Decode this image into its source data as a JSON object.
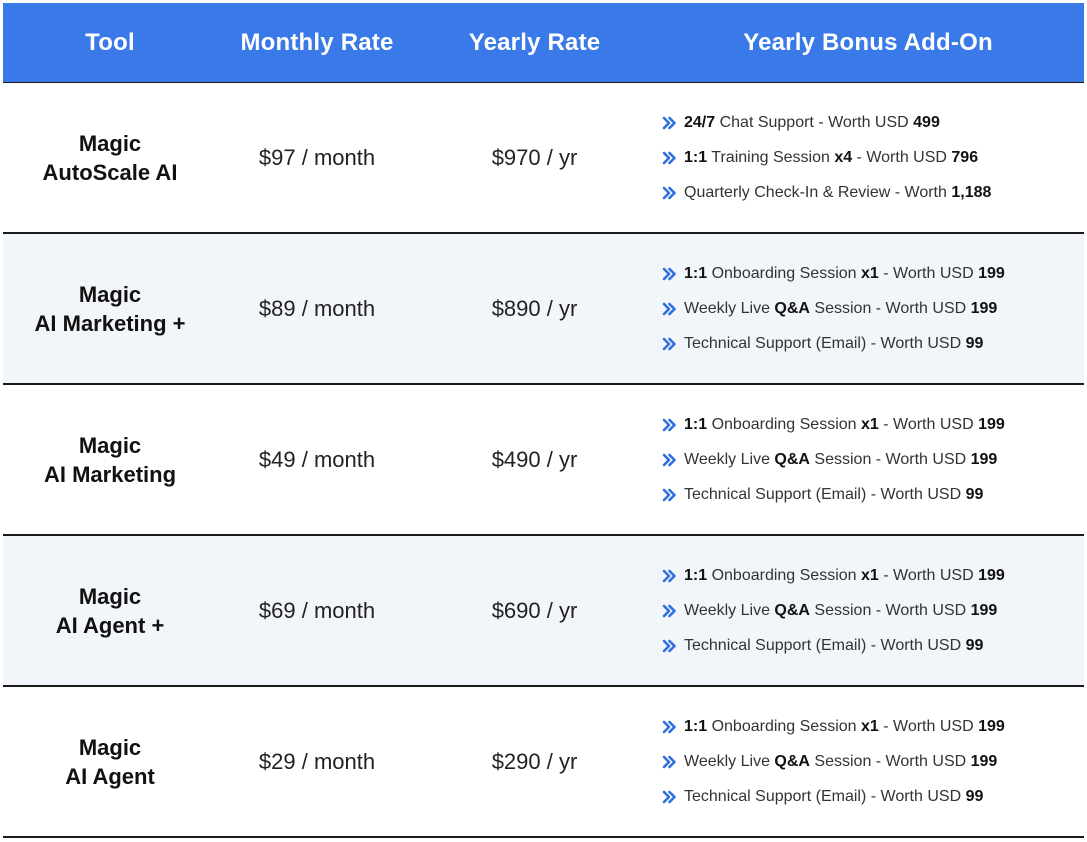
{
  "header": {
    "tool": "Tool",
    "monthly": "Monthly Rate",
    "yearly": "Yearly Rate",
    "bonus": "Yearly Bonus Add-On"
  },
  "colors": {
    "header_bg": "#3a7ae8",
    "header_text": "#ffffff",
    "alt_row_bg": "#f2f5fa",
    "chevron": "#2f6fe0"
  },
  "bullet_icon": "double-chevron-right-icon",
  "rows": [
    {
      "name_line1": "Magic",
      "name_line2": "AutoScale AI",
      "monthly": "$97 / month",
      "yearly": "$970 / yr",
      "bonuses": [
        {
          "b1": "24/7",
          "t1": " Chat Support - Worth USD ",
          "b2": "499",
          "t2": ""
        },
        {
          "b1": "1:1",
          "t1": " Training Session ",
          "b2": "x4",
          "t2": " - Worth USD ",
          "b3": "796"
        },
        {
          "b1": "",
          "t1": "Quarterly Check-In & Review - Worth ",
          "b2": "1,188",
          "t2": ""
        }
      ]
    },
    {
      "name_line1": "Magic",
      "name_line2": "AI Marketing +",
      "monthly": "$89 / month",
      "yearly": "$890 / yr",
      "bonuses": [
        {
          "b1": "1:1",
          "t1": " Onboarding Session ",
          "b2": "x1",
          "t2": " - Worth USD ",
          "b3": "199"
        },
        {
          "b1": "",
          "t1": "Weekly Live ",
          "b2": "Q&A",
          "t2": " Session - Worth USD ",
          "b3": "199"
        },
        {
          "b1": "",
          "t1": "Technical Support (Email) - Worth USD ",
          "b2": "99",
          "t2": ""
        }
      ]
    },
    {
      "name_line1": "Magic",
      "name_line2": "AI Marketing",
      "monthly": "$49 / month",
      "yearly": "$490 / yr",
      "bonuses": [
        {
          "b1": "1:1",
          "t1": " Onboarding Session ",
          "b2": "x1",
          "t2": " - Worth USD ",
          "b3": "199"
        },
        {
          "b1": "",
          "t1": "Weekly Live ",
          "b2": "Q&A",
          "t2": " Session - Worth USD ",
          "b3": "199"
        },
        {
          "b1": "",
          "t1": "Technical Support (Email) - Worth USD ",
          "b2": "99",
          "t2": ""
        }
      ]
    },
    {
      "name_line1": "Magic",
      "name_line2": "AI Agent +",
      "monthly": "$69 / month",
      "yearly": "$690 / yr",
      "bonuses": [
        {
          "b1": "1:1",
          "t1": " Onboarding Session ",
          "b2": "x1",
          "t2": " - Worth USD ",
          "b3": "199"
        },
        {
          "b1": "",
          "t1": "Weekly Live ",
          "b2": "Q&A",
          "t2": " Session - Worth USD ",
          "b3": "199"
        },
        {
          "b1": "",
          "t1": "Technical Support (Email) - Worth USD ",
          "b2": "99",
          "t2": ""
        }
      ]
    },
    {
      "name_line1": "Magic",
      "name_line2": "AI Agent",
      "monthly": "$29 / month",
      "yearly": "$290 / yr",
      "bonuses": [
        {
          "b1": "1:1",
          "t1": " Onboarding Session ",
          "b2": "x1",
          "t2": " - Worth USD ",
          "b3": "199"
        },
        {
          "b1": "",
          "t1": "Weekly Live ",
          "b2": "Q&A",
          "t2": " Session - Worth USD ",
          "b3": "199"
        },
        {
          "b1": "",
          "t1": "Technical Support (Email) - Worth USD ",
          "b2": "99",
          "t2": ""
        }
      ]
    }
  ]
}
